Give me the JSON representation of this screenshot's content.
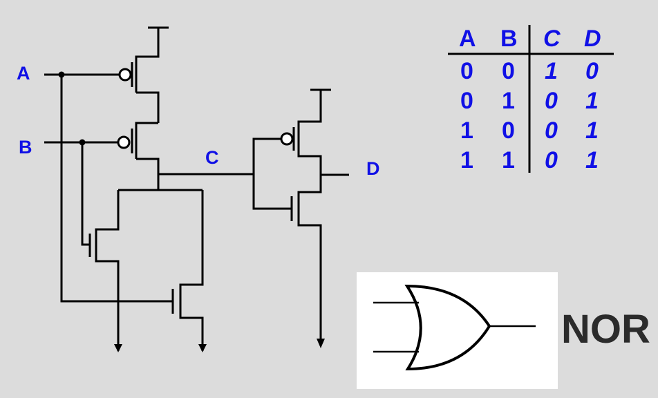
{
  "labels": {
    "input_a": "A",
    "input_b": "B",
    "node_c": "C",
    "output_d": "D"
  },
  "truth_table": {
    "headers": [
      "A",
      "B",
      "C",
      "D"
    ],
    "rows": [
      [
        "0",
        "0",
        "1",
        "0"
      ],
      [
        "0",
        "1",
        "0",
        "1"
      ],
      [
        "1",
        "0",
        "0",
        "1"
      ],
      [
        "1",
        "1",
        "0",
        "1"
      ]
    ]
  },
  "gate_label": "NOR",
  "colors": {
    "background": "#dcdcdc",
    "label": "#1010e6",
    "wire": "#000000",
    "gate_word": "#2b2b2b",
    "symbol_box": "#ffffff"
  }
}
